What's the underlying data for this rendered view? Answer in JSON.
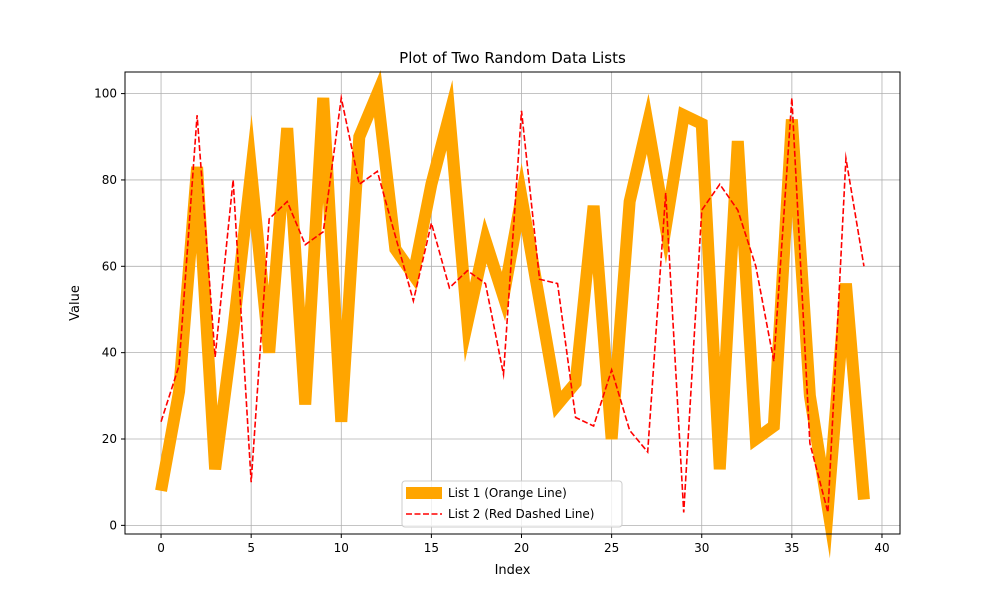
{
  "chart_data": {
    "type": "line",
    "title": "Plot of Two Random Data Lists",
    "xlabel": "Index",
    "ylabel": "Value",
    "xlim": [
      -2,
      41
    ],
    "ylim": [
      -2,
      105
    ],
    "xticks": [
      0,
      5,
      10,
      15,
      20,
      25,
      30,
      35,
      40
    ],
    "yticks": [
      0,
      20,
      40,
      60,
      80,
      100
    ],
    "grid": true,
    "legend_position": "bottom-center",
    "series": [
      {
        "name": "List 1 (Orange Line)",
        "color": "#ffa500",
        "style": "solid-thick",
        "x": [
          0,
          1,
          2,
          3,
          4,
          5,
          6,
          7,
          8,
          9,
          10,
          11,
          12,
          13,
          14,
          15,
          16,
          17,
          18,
          19,
          20,
          21,
          22,
          23,
          24,
          25,
          26,
          27,
          28,
          29,
          30,
          31,
          32,
          33,
          34,
          35,
          36,
          37,
          38,
          39
        ],
        "values": [
          8,
          31,
          83,
          13,
          45,
          82,
          40,
          92,
          28,
          99,
          24,
          90,
          100,
          64,
          58,
          79,
          95,
          47,
          66,
          53,
          76,
          52,
          28,
          33,
          74,
          20,
          75,
          93,
          69,
          95,
          93,
          13,
          89,
          20,
          23,
          94,
          30,
          4,
          56,
          6
        ]
      },
      {
        "name": "List 2 (Red Dashed Line)",
        "color": "#ff0000",
        "style": "dashed",
        "x": [
          0,
          1,
          2,
          3,
          4,
          5,
          6,
          7,
          8,
          9,
          10,
          11,
          12,
          13,
          14,
          15,
          16,
          17,
          18,
          19,
          20,
          21,
          22,
          23,
          24,
          25,
          26,
          27,
          28,
          29,
          30,
          31,
          32,
          33,
          34,
          35,
          36,
          37,
          38,
          39
        ],
        "values": [
          24,
          37,
          95,
          39,
          80,
          10,
          71,
          75,
          65,
          68,
          99,
          79,
          82,
          67,
          52,
          70,
          55,
          59,
          56,
          35,
          96,
          57,
          56,
          25,
          23,
          36,
          22,
          17,
          77,
          3,
          73,
          79,
          73,
          60,
          38,
          99,
          19,
          3,
          85,
          60
        ]
      }
    ]
  }
}
